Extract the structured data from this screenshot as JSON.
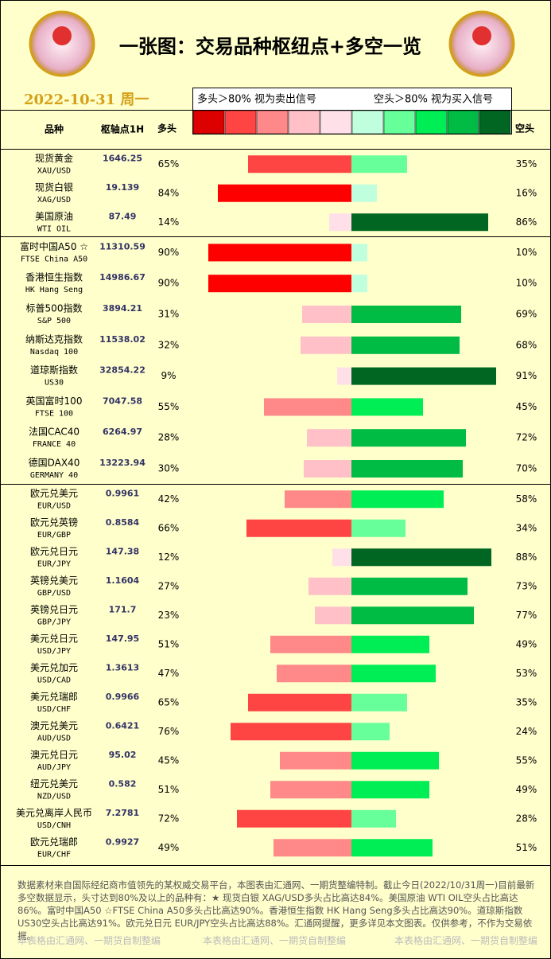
{
  "chart_data": {
    "type": "bar",
    "title": "一张图：交易品种枢纽点+多空一览",
    "date": "2022-10-31 周一",
    "legend": {
      "long_text": "多头＞80% 视为卖出信号",
      "short_text": "空头＞80% 视为买入信号",
      "colors": [
        "#dd0000",
        "#ff4444",
        "#ff8888",
        "#ffc0c8",
        "#ffe0e8",
        "#c0ffdd",
        "#66ff99",
        "#00ee55",
        "#00bb44",
        "#006622"
      ]
    },
    "headers": {
      "name": "品种",
      "pivot": "枢轴点1H"
    },
    "categories": [
      "现货黄金",
      "现货白银",
      "美国原油",
      "富时中国A50 ☆",
      "香港恒生指数",
      "标普500指数",
      "纳斯达克指数",
      "道琼斯指数",
      "英国富时100",
      "法国CAC40",
      "德国DAX40",
      "欧元兑美元",
      "欧元兑英镑",
      "欧元兑日元",
      "英镑兑美元",
      "英镑兑日元",
      "美元兑日元",
      "美元兑加元",
      "美元兑瑞郎",
      "澳元兑美元",
      "澳元兑日元",
      "纽元兑美元",
      "美元兑离岸人民币",
      "欧元兑瑞郎"
    ],
    "codes": [
      "XAU/USD",
      "XAG/USD",
      "WTI OIL",
      "FTSE China A50",
      "HK Hang Seng",
      "S&P 500",
      "Nasdaq 100",
      "US30",
      "FTSE 100",
      "FRANCE 40",
      "GERMANY 40",
      "EUR/USD",
      "EUR/GBP",
      "EUR/JPY",
      "GBP/USD",
      "GBP/JPY",
      "USD/JPY",
      "USD/CAD",
      "USD/CHF",
      "AUD/USD",
      "AUD/JPY",
      "NZD/USD",
      "USD/CNH",
      "EUR/CHF"
    ],
    "pivots": [
      1646.25,
      19.139,
      87.49,
      11310.59,
      14986.67,
      3894.21,
      11538.02,
      32854.22,
      7047.58,
      6264.97,
      13223.94,
      0.9961,
      0.8584,
      147.38,
      1.1604,
      171.7,
      147.95,
      1.3613,
      0.9966,
      0.6421,
      95.02,
      0.582,
      7.2781,
      0.9927
    ],
    "series": [
      {
        "name": "多头",
        "values": [
          65,
          84,
          14,
          90,
          90,
          31,
          32,
          9,
          55,
          28,
          30,
          42,
          66,
          12,
          27,
          23,
          51,
          47,
          65,
          76,
          45,
          51,
          72,
          49
        ],
        "value_labels": [
          "65%",
          "84%",
          "14%",
          "90%",
          "90%",
          "31%",
          "32%",
          "9%",
          "55%",
          "28%",
          "30%",
          "42%",
          "66%",
          "12%",
          "27%",
          "23%",
          "51%",
          "47%",
          "65%",
          "76%",
          "45%",
          "51%",
          "72%",
          "49%"
        ],
        "colors": [
          "#ff4444",
          "#ff0000",
          "#ffe0e8",
          "#ff0000",
          "#ff0000",
          "#ffc0c8",
          "#ffc0c8",
          "#ffe0e8",
          "#ff8888",
          "#ffc0c8",
          "#ffc0c8",
          "#ff8888",
          "#ff4444",
          "#ffe0e8",
          "#ffc0c8",
          "#ffc0c8",
          "#ff8888",
          "#ff8888",
          "#ff4444",
          "#ff4444",
          "#ff8888",
          "#ff8888",
          "#ff4444",
          "#ff8888"
        ]
      },
      {
        "name": "空头",
        "values": [
          35,
          16,
          86,
          10,
          10,
          69,
          68,
          91,
          45,
          72,
          70,
          58,
          34,
          88,
          73,
          77,
          49,
          53,
          35,
          24,
          55,
          49,
          28,
          51
        ],
        "value_labels": [
          "35%",
          "16%",
          "86%",
          "10%",
          "10%",
          "69%",
          "68%",
          "91%",
          "45%",
          "72%",
          "70%",
          "58%",
          "34%",
          "88%",
          "73%",
          "77%",
          "49%",
          "53%",
          "35%",
          "24%",
          "55%",
          "49%",
          "28%",
          "51%"
        ],
        "colors": [
          "#66ff99",
          "#c0ffdd",
          "#006622",
          "#c0ffdd",
          "#c0ffdd",
          "#00bb44",
          "#00bb44",
          "#006622",
          "#00ee55",
          "#00bb44",
          "#00bb44",
          "#00ee55",
          "#66ff99",
          "#006622",
          "#00bb44",
          "#00bb44",
          "#00ee55",
          "#00ee55",
          "#66ff99",
          "#66ff99",
          "#00ee55",
          "#00ee55",
          "#66ff99",
          "#00ee55"
        ]
      }
    ],
    "footer": {
      "note": "数据素材来自国际经纪商市值领先的某权威交易平台，本图表由汇通网、一期货整编特制。截止今日(2022/10/31周一)目前最新多空数据显示，头寸达到80%及以上的品种有：★ 现货白银 XAG/USD多头占比高达84%。美国原油 WTI OIL空头占比高达86%。富时中国A50 ☆FTSE China A50多头占比高达90%。香港恒生指数 HK Hang Seng多头占比高达90%。道琼斯指数 US30空头占比高达91%。欧元兑日元 EUR/JPY空头占比高达88%。汇通网提醒，更多详见本文图表。仅供参考，不作为交易依据。",
      "credits": [
        "本表格由汇通网、一期货自制整编",
        "本表格由汇通网、一期货自制整编",
        "本表格由汇通网、一期货自制整编"
      ]
    }
  }
}
